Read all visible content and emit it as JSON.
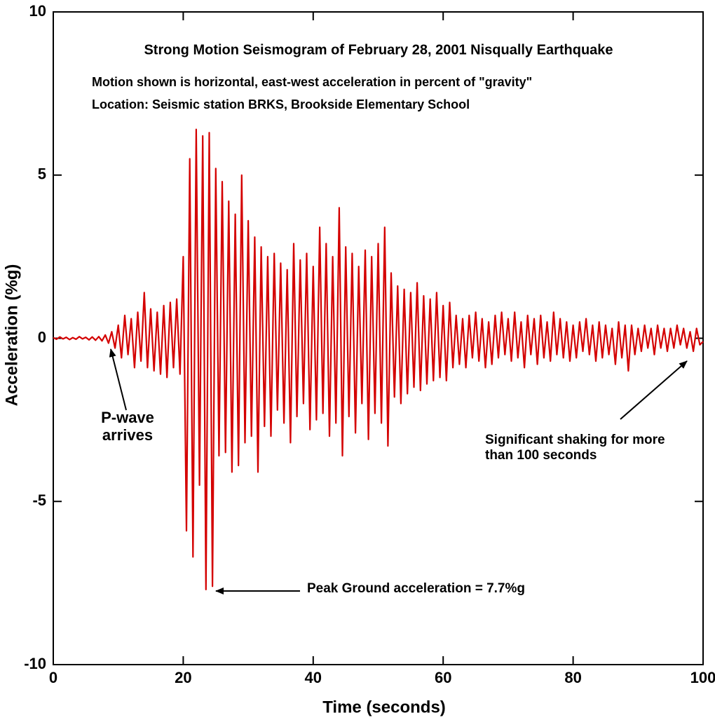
{
  "chart_data": {
    "type": "line",
    "title": "Strong Motion Seismogram of February 28, 2001 Nisqually Earthquake",
    "subtitle": [
      "Motion shown is horizontal, east-west acceleration in percent of \"gravity\"",
      "Location: Seismic station  BRKS,  Brookside Elementary School"
    ],
    "x_label": "Time (seconds)",
    "y_label": "Acceleration (%g)",
    "annotations": [
      [
        "P-wave",
        "arrives"
      ],
      [
        "Peak Ground acceleration = 7.7%g"
      ],
      [
        "Significant  shaking for more",
        "than 100 seconds"
      ]
    ],
    "color": "#d40000",
    "xlim": [
      0,
      100
    ],
    "xticks": [
      0,
      20,
      40,
      60,
      80,
      100
    ],
    "ylim": [
      -10,
      10
    ],
    "yticks": [
      -10,
      -5,
      0,
      5,
      10
    ],
    "x": [
      0,
      0.5,
      1,
      1.5,
      2,
      2.5,
      3,
      3.5,
      4,
      4.5,
      5,
      5.5,
      6,
      6.5,
      7,
      7.5,
      8,
      8.5,
      9,
      9.5,
      10,
      10.5,
      11,
      11.5,
      12,
      12.5,
      13,
      13.5,
      14,
      14.5,
      15,
      15.5,
      16,
      16.5,
      17,
      17.5,
      18,
      18.5,
      19,
      19.5,
      20,
      20.5,
      21,
      21.5,
      22,
      22.5,
      23,
      23.5,
      24,
      24.5,
      25,
      25.5,
      26,
      26.5,
      27,
      27.5,
      28,
      28.5,
      29,
      29.5,
      30,
      30.5,
      31,
      31.5,
      32,
      32.5,
      33,
      33.5,
      34,
      34.5,
      35,
      35.5,
      36,
      36.5,
      37,
      37.5,
      38,
      38.5,
      39,
      39.5,
      40,
      40.5,
      41,
      41.5,
      42,
      42.5,
      43,
      43.5,
      44,
      44.5,
      45,
      45.5,
      46,
      46.5,
      47,
      47.5,
      48,
      48.5,
      49,
      49.5,
      50,
      50.5,
      51,
      51.5,
      52,
      52.5,
      53,
      53.5,
      54,
      54.5,
      55,
      55.5,
      56,
      56.5,
      57,
      57.5,
      58,
      58.5,
      59,
      59.5,
      60,
      60.5,
      61,
      61.5,
      62,
      62.5,
      63,
      63.5,
      64,
      64.5,
      65,
      65.5,
      66,
      66.5,
      67,
      67.5,
      68,
      68.5,
      69,
      69.5,
      70,
      70.5,
      71,
      71.5,
      72,
      72.5,
      73,
      73.5,
      74,
      74.5,
      75,
      75.5,
      76,
      76.5,
      77,
      77.5,
      78,
      78.5,
      79,
      79.5,
      80,
      80.5,
      81,
      81.5,
      82,
      82.5,
      83,
      83.5,
      84,
      84.5,
      85,
      85.5,
      86,
      86.5,
      87,
      87.5,
      88,
      88.5,
      89,
      89.5,
      90,
      90.5,
      91,
      91.5,
      92,
      92.5,
      93,
      93.5,
      94,
      94.5,
      95,
      95.5,
      96,
      96.5,
      97,
      97.5,
      98,
      98.5,
      99,
      99.5,
      100
    ],
    "values": [
      0.02,
      -0.03,
      0.04,
      -0.02,
      0.03,
      -0.04,
      0.02,
      -0.03,
      0.05,
      -0.02,
      0.03,
      -0.05,
      0.04,
      -0.06,
      0.05,
      -0.08,
      0.1,
      -0.15,
      0.2,
      -0.3,
      0.4,
      -0.6,
      0.7,
      -0.5,
      0.6,
      -0.9,
      0.8,
      -0.7,
      1.4,
      -0.9,
      0.9,
      -1.0,
      0.8,
      -1.1,
      1.0,
      -1.2,
      1.1,
      -0.9,
      1.2,
      -1.1,
      2.5,
      -5.9,
      5.5,
      -6.7,
      6.4,
      -4.5,
      6.2,
      -7.7,
      6.3,
      -7.6,
      5.2,
      -3.6,
      4.8,
      -3.5,
      4.2,
      -4.1,
      3.8,
      -3.9,
      5.0,
      -3.2,
      3.6,
      -3.0,
      3.1,
      -4.1,
      2.8,
      -2.7,
      2.5,
      -3.0,
      2.6,
      -2.2,
      2.3,
      -2.6,
      2.1,
      -3.2,
      2.9,
      -2.4,
      2.4,
      -2.0,
      2.6,
      -2.8,
      2.2,
      -2.5,
      3.4,
      -2.3,
      2.9,
      -3.0,
      2.5,
      -2.6,
      4.0,
      -3.6,
      2.8,
      -2.4,
      2.6,
      -2.9,
      2.2,
      -2.0,
      2.7,
      -3.1,
      2.5,
      -2.3,
      2.9,
      -2.6,
      3.4,
      -3.3,
      2.0,
      -1.8,
      1.6,
      -2.0,
      1.5,
      -1.7,
      1.4,
      -1.5,
      1.7,
      -1.6,
      1.3,
      -1.4,
      1.2,
      -1.3,
      1.4,
      -1.2,
      1.0,
      -1.3,
      1.1,
      -0.9,
      0.7,
      -0.8,
      0.6,
      -0.9,
      0.7,
      -0.6,
      0.8,
      -0.7,
      0.6,
      -0.9,
      0.5,
      -0.8,
      0.7,
      -0.6,
      0.8,
      -0.5,
      0.6,
      -0.7,
      0.8,
      -0.6,
      0.5,
      -0.9,
      0.7,
      -0.5,
      0.6,
      -0.8,
      0.7,
      -0.6,
      0.5,
      -0.7,
      0.8,
      -0.5,
      0.6,
      -0.6,
      0.5,
      -0.7,
      0.4,
      -0.6,
      0.5,
      -0.4,
      0.6,
      -0.5,
      0.4,
      -0.7,
      0.5,
      -0.6,
      0.4,
      -0.5,
      0.3,
      -0.8,
      0.5,
      -0.6,
      0.4,
      -1.0,
      0.4,
      -0.5,
      0.3,
      -0.4,
      0.4,
      -0.3,
      0.3,
      -0.5,
      0.4,
      -0.3,
      0.3,
      -0.4,
      0.3,
      -0.3,
      0.4,
      -0.2,
      0.3,
      -0.3,
      0.2,
      -0.4,
      0.3,
      -0.2,
      -0.1
    ]
  }
}
